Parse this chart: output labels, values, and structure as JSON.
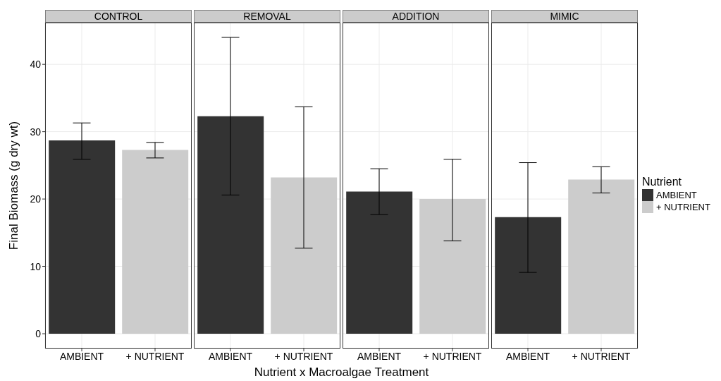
{
  "chart_data": [
    {
      "type": "bar",
      "title": "CONTROL",
      "ylabel": "Final Biomass (g dry wt)",
      "xlabel": "Nutrient x Macroalgae Treatment",
      "categories": [
        "AMBIENT",
        "+ NUTRIENT"
      ],
      "series": [
        {
          "color": "#333333",
          "values": [
            28.7,
            null
          ],
          "errors": [
            [
              25.9,
              31.3
            ],
            null
          ]
        },
        {
          "color": "#cccccc",
          "values": [
            null,
            27.3
          ],
          "errors": [
            null,
            [
              26.1,
              28.4
            ]
          ]
        }
      ],
      "ylim": [
        -2.2,
        46.2
      ],
      "yticks": [
        0,
        10,
        20,
        30,
        40
      ],
      "grid": true
    },
    {
      "type": "bar",
      "title": "REMOVAL",
      "categories": [
        "AMBIENT",
        "+ NUTRIENT"
      ],
      "series": [
        {
          "color": "#333333",
          "values": [
            32.3,
            null
          ],
          "errors": [
            [
              20.6,
              44.0
            ],
            null
          ]
        },
        {
          "color": "#cccccc",
          "values": [
            null,
            23.2
          ],
          "errors": [
            null,
            [
              12.7,
              33.7
            ]
          ]
        }
      ],
      "ylim": [
        -2.2,
        46.2
      ],
      "yticks": [
        0,
        10,
        20,
        30,
        40
      ],
      "grid": true,
      "tick_labels": "x"
    },
    {
      "type": "bar",
      "title": "ADDITION",
      "categories": [
        "AMBIENT",
        "+ NUTRIENT"
      ],
      "series": [
        {
          "color": "#333333",
          "values": [
            21.1,
            null
          ],
          "errors": [
            [
              17.7,
              24.5
            ],
            null
          ]
        },
        {
          "color": "#cccccc",
          "values": [
            null,
            20.0
          ],
          "errors": [
            null,
            [
              13.8,
              25.9
            ]
          ]
        }
      ],
      "ylim": [
        -2.2,
        46.2
      ],
      "yticks": [
        0,
        10,
        20,
        30,
        40
      ],
      "grid": true,
      "tick_labels": "x"
    },
    {
      "type": "bar",
      "title": "MIMIC",
      "categories": [
        "AMBIENT",
        "+ NUTRIENT"
      ],
      "series": [
        {
          "name": "AMBIENT",
          "color": "#333333",
          "values": [
            17.3,
            null
          ],
          "errors": [
            [
              9.1,
              25.4
            ],
            null
          ]
        },
        {
          "name": "+ NUTRIENT",
          "color": "#cccccc",
          "values": [
            null,
            22.9
          ],
          "errors": [
            null,
            [
              20.9,
              24.8
            ]
          ]
        }
      ],
      "ylim": [
        -2.2,
        46.2
      ],
      "yticks": [
        0,
        10,
        20,
        30,
        40
      ],
      "grid": true,
      "tick_labels": "x",
      "legend": "right",
      "legend_title": "Nutrient"
    }
  ]
}
